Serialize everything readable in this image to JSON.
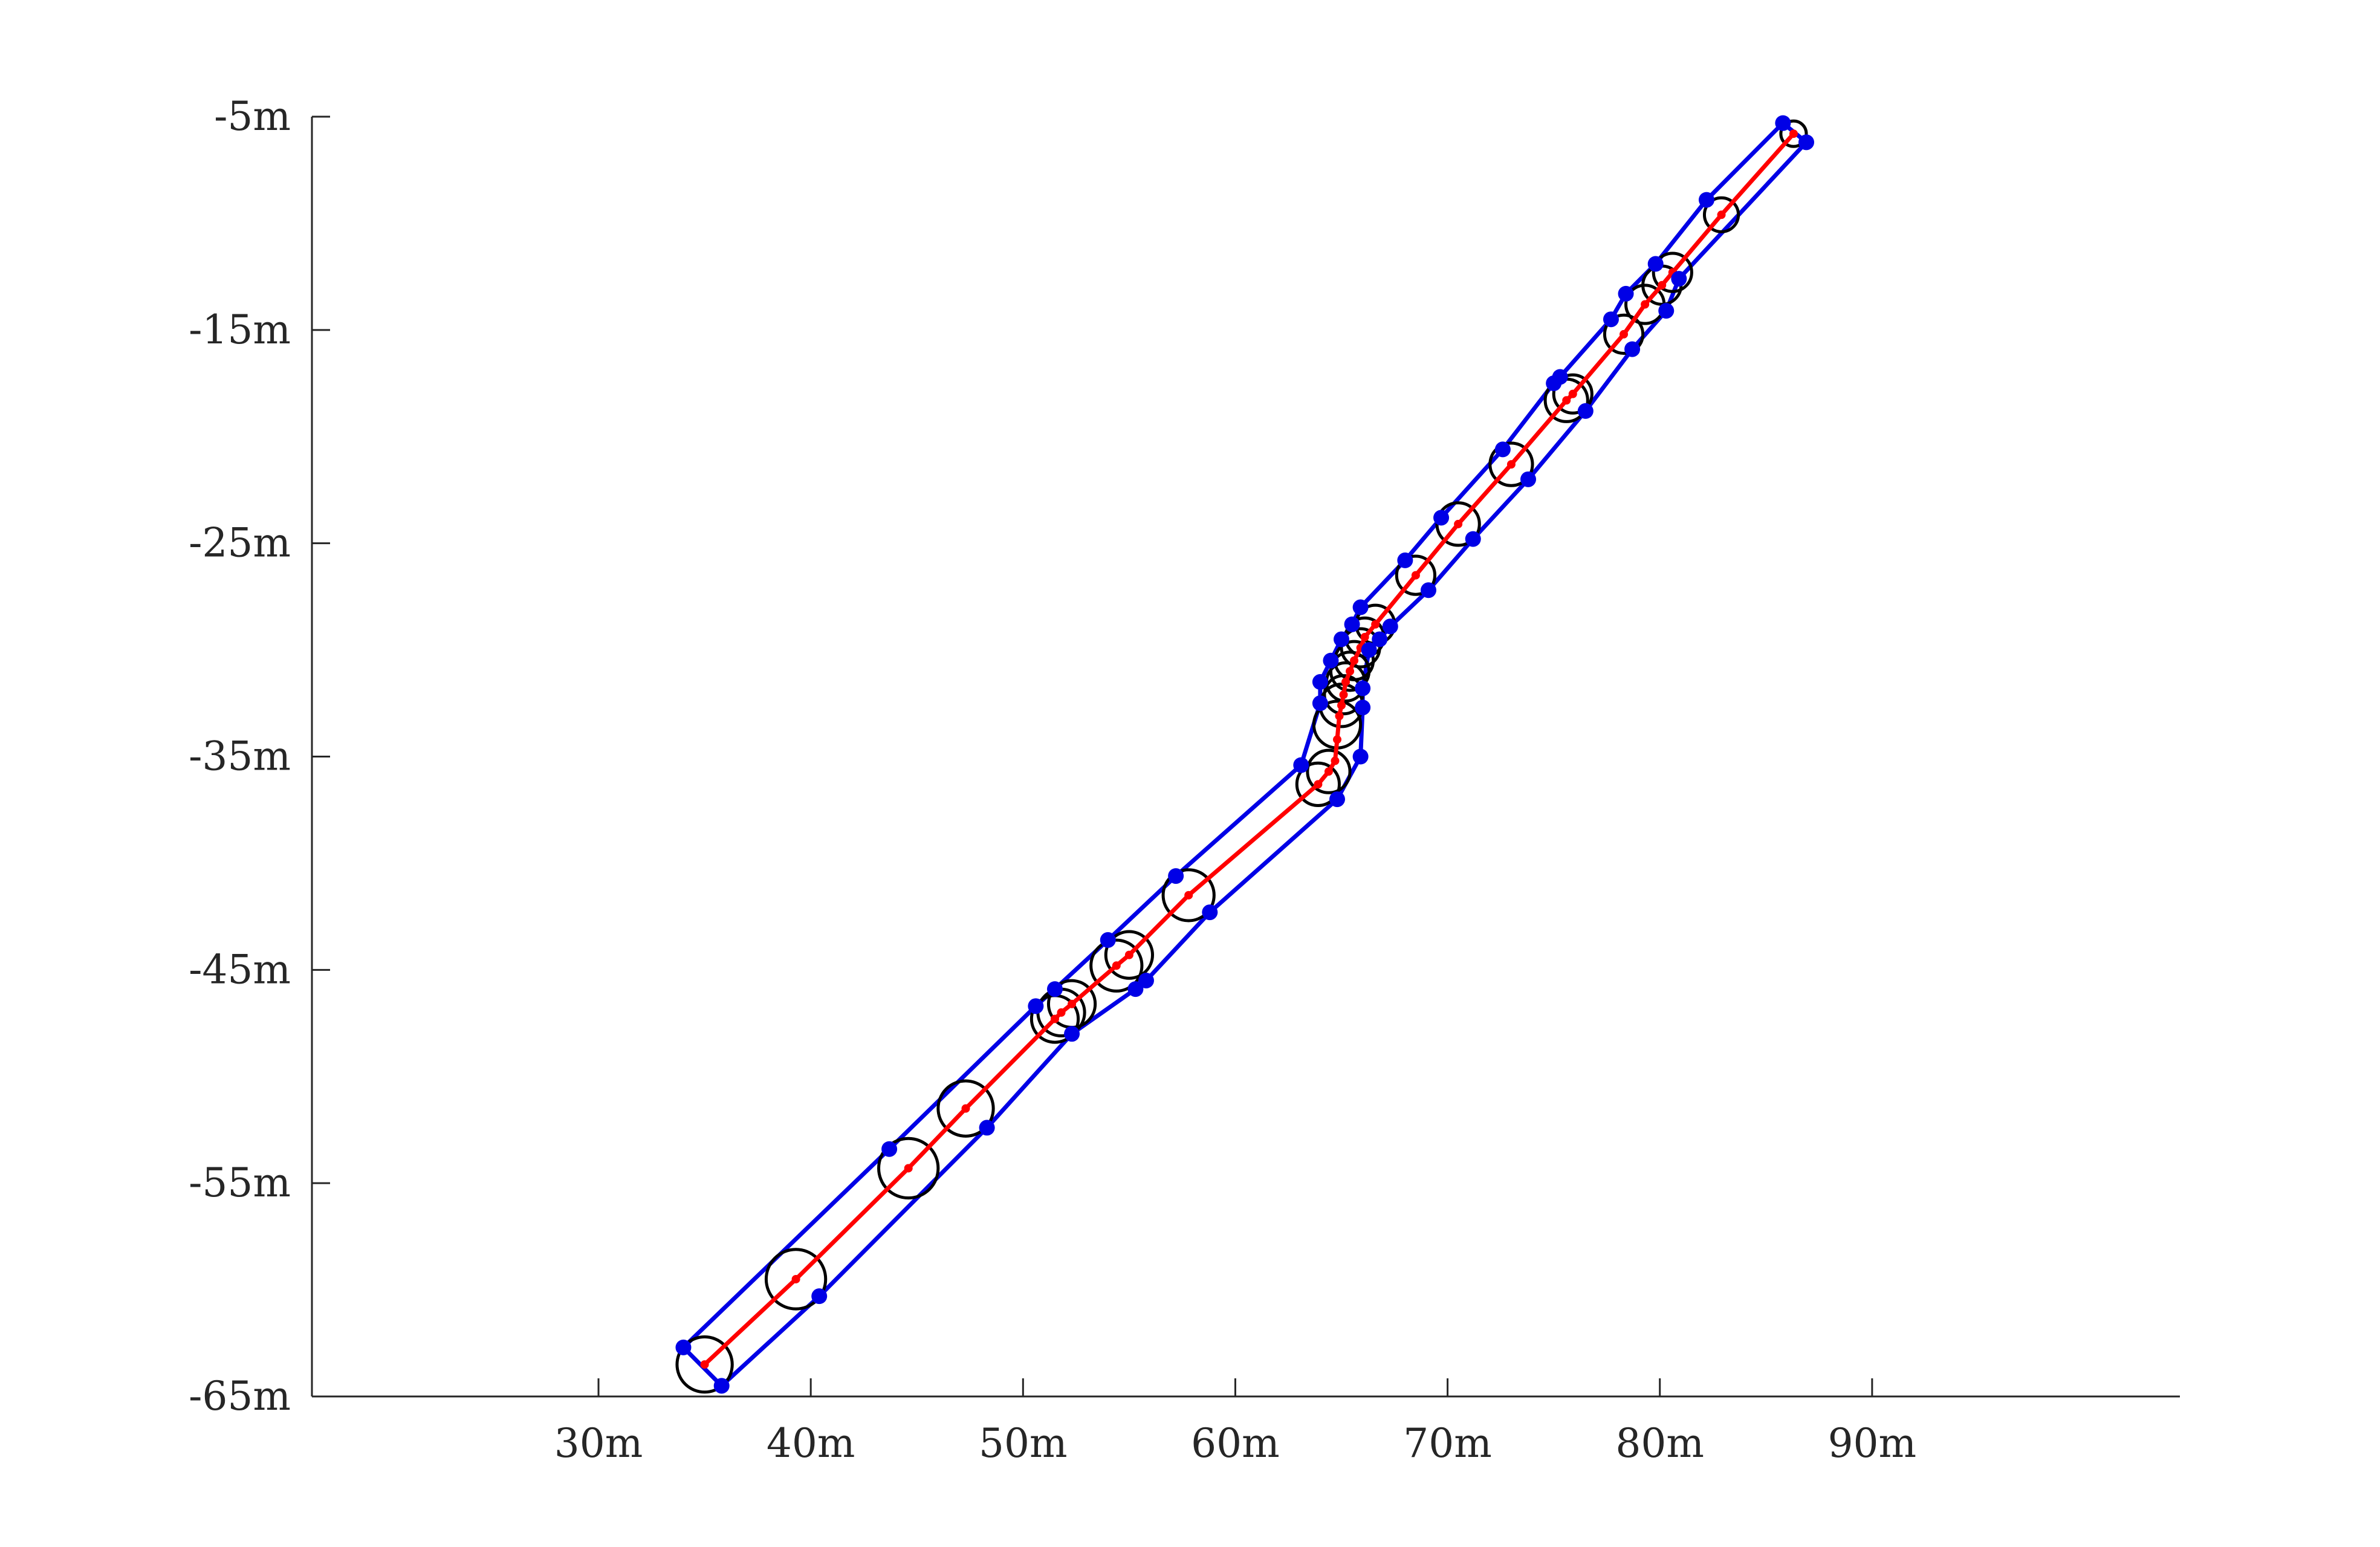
{
  "chart_data": {
    "type": "line",
    "xlim": [
      16.5,
      104.5
    ],
    "ylim": [
      -65,
      -5
    ],
    "x_ticks": [
      30,
      40,
      50,
      60,
      70,
      80,
      90
    ],
    "x_tick_labels": [
      "30m",
      "40m",
      "50m",
      "60m",
      "70m",
      "80m",
      "90m"
    ],
    "y_ticks": [
      -5,
      -15,
      -25,
      -35,
      -45,
      -55,
      -65
    ],
    "y_tick_labels": [
      "-5m",
      "-15m",
      "-25m",
      "-35m",
      "-45m",
      "-55m",
      "-65m"
    ],
    "grid": false,
    "legend": false,
    "colors": {
      "path": "#ff0000",
      "corridor": "#0000e6",
      "circles": "#000000",
      "axes": "#262626"
    },
    "series": [
      {
        "values": [
          [
            35.0,
            -63.5
          ],
          [
            39.3,
            -59.5
          ],
          [
            44.6,
            -54.3
          ],
          [
            47.3,
            -51.5
          ],
          [
            51.5,
            -47.3
          ],
          [
            51.8,
            -47.0
          ],
          [
            52.3,
            -46.6
          ],
          [
            54.4,
            -44.8
          ],
          [
            55.0,
            -44.3
          ],
          [
            57.8,
            -41.5
          ],
          [
            63.9,
            -36.3
          ],
          [
            64.4,
            -35.7
          ],
          [
            64.7,
            -35.2
          ],
          [
            64.8,
            -34.2
          ],
          [
            64.9,
            -33.1
          ],
          [
            65.0,
            -32.6
          ],
          [
            65.1,
            -32.1
          ],
          [
            65.2,
            -31.5
          ],
          [
            65.4,
            -31.0
          ],
          [
            65.6,
            -30.5
          ],
          [
            65.9,
            -29.9
          ],
          [
            66.1,
            -29.4
          ],
          [
            66.6,
            -28.8
          ],
          [
            68.5,
            -26.5
          ],
          [
            70.5,
            -24.1
          ],
          [
            73.0,
            -21.3
          ],
          [
            75.6,
            -18.3
          ],
          [
            75.9,
            -18.0
          ],
          [
            78.3,
            -15.2
          ],
          [
            79.3,
            -13.8
          ],
          [
            80.1,
            -12.9
          ],
          [
            80.6,
            -12.3
          ],
          [
            82.9,
            -9.6
          ],
          [
            86.3,
            -5.8
          ]
        ]
      },
      {
        "values": [
          [
            34.0,
            -62.7
          ],
          [
            43.7,
            -53.4
          ],
          [
            50.6,
            -46.7
          ],
          [
            51.5,
            -45.9
          ],
          [
            54.0,
            -43.6
          ],
          [
            57.2,
            -40.6
          ],
          [
            63.1,
            -35.4
          ],
          [
            64.0,
            -32.5
          ],
          [
            64.0,
            -31.5
          ],
          [
            64.5,
            -30.5
          ],
          [
            65.0,
            -29.5
          ],
          [
            65.5,
            -28.8
          ],
          [
            65.9,
            -28.0
          ],
          [
            68.0,
            -25.8
          ],
          [
            69.7,
            -23.8
          ],
          [
            72.6,
            -20.6
          ],
          [
            75.0,
            -17.5
          ],
          [
            75.3,
            -17.2
          ],
          [
            77.7,
            -14.5
          ],
          [
            78.4,
            -13.3
          ],
          [
            79.8,
            -11.9
          ],
          [
            82.2,
            -8.9
          ],
          [
            85.8,
            -5.3
          ]
        ]
      },
      {
        "values": [
          [
            35.8,
            -64.5
          ],
          [
            40.4,
            -60.3
          ],
          [
            48.3,
            -52.4
          ],
          [
            52.3,
            -48.0
          ],
          [
            55.3,
            -45.9
          ],
          [
            55.8,
            -45.5
          ],
          [
            58.8,
            -42.3
          ],
          [
            64.8,
            -37.0
          ],
          [
            65.9,
            -35.0
          ],
          [
            66.0,
            -32.7
          ],
          [
            66.0,
            -31.8
          ],
          [
            66.3,
            -30.0
          ],
          [
            66.8,
            -29.5
          ],
          [
            67.3,
            -28.9
          ],
          [
            69.1,
            -27.2
          ],
          [
            71.2,
            -24.8
          ],
          [
            73.8,
            -22.0
          ],
          [
            76.5,
            -18.8
          ],
          [
            78.7,
            -15.9
          ],
          [
            80.3,
            -14.1
          ],
          [
            80.9,
            -12.6
          ],
          [
            86.9,
            -6.2
          ]
        ]
      },
      {
        "values": [
          [
            35.0,
            -63.5,
            1.3
          ],
          [
            39.3,
            -59.5,
            1.4
          ],
          [
            44.6,
            -54.3,
            1.4
          ],
          [
            47.3,
            -51.5,
            1.3
          ],
          [
            51.5,
            -47.3,
            1.1
          ],
          [
            51.8,
            -47.0,
            1.1
          ],
          [
            52.3,
            -46.6,
            1.1
          ],
          [
            54.4,
            -44.8,
            1.2
          ],
          [
            55.0,
            -44.3,
            1.1
          ],
          [
            57.8,
            -41.5,
            1.2
          ],
          [
            63.9,
            -36.3,
            1.0
          ],
          [
            64.4,
            -35.7,
            1.0
          ],
          [
            64.8,
            -33.5,
            1.1
          ],
          [
            65.0,
            -32.6,
            1.0
          ],
          [
            65.1,
            -32.1,
            0.9
          ],
          [
            65.2,
            -31.5,
            0.9
          ],
          [
            65.4,
            -31.0,
            0.9
          ],
          [
            65.6,
            -30.5,
            0.9
          ],
          [
            65.9,
            -29.9,
            0.9
          ],
          [
            66.1,
            -29.4,
            0.9
          ],
          [
            66.6,
            -28.8,
            0.9
          ],
          [
            68.5,
            -26.5,
            0.9
          ],
          [
            70.5,
            -24.1,
            1.0
          ],
          [
            73.0,
            -21.3,
            1.0
          ],
          [
            75.6,
            -18.3,
            1.0
          ],
          [
            75.9,
            -18.0,
            0.9
          ],
          [
            78.3,
            -15.2,
            0.9
          ],
          [
            79.3,
            -13.8,
            0.9
          ],
          [
            80.1,
            -12.9,
            0.9
          ],
          [
            80.6,
            -12.3,
            0.9
          ],
          [
            82.9,
            -9.6,
            0.8
          ],
          [
            86.3,
            -5.8,
            0.6
          ]
        ]
      }
    ]
  }
}
